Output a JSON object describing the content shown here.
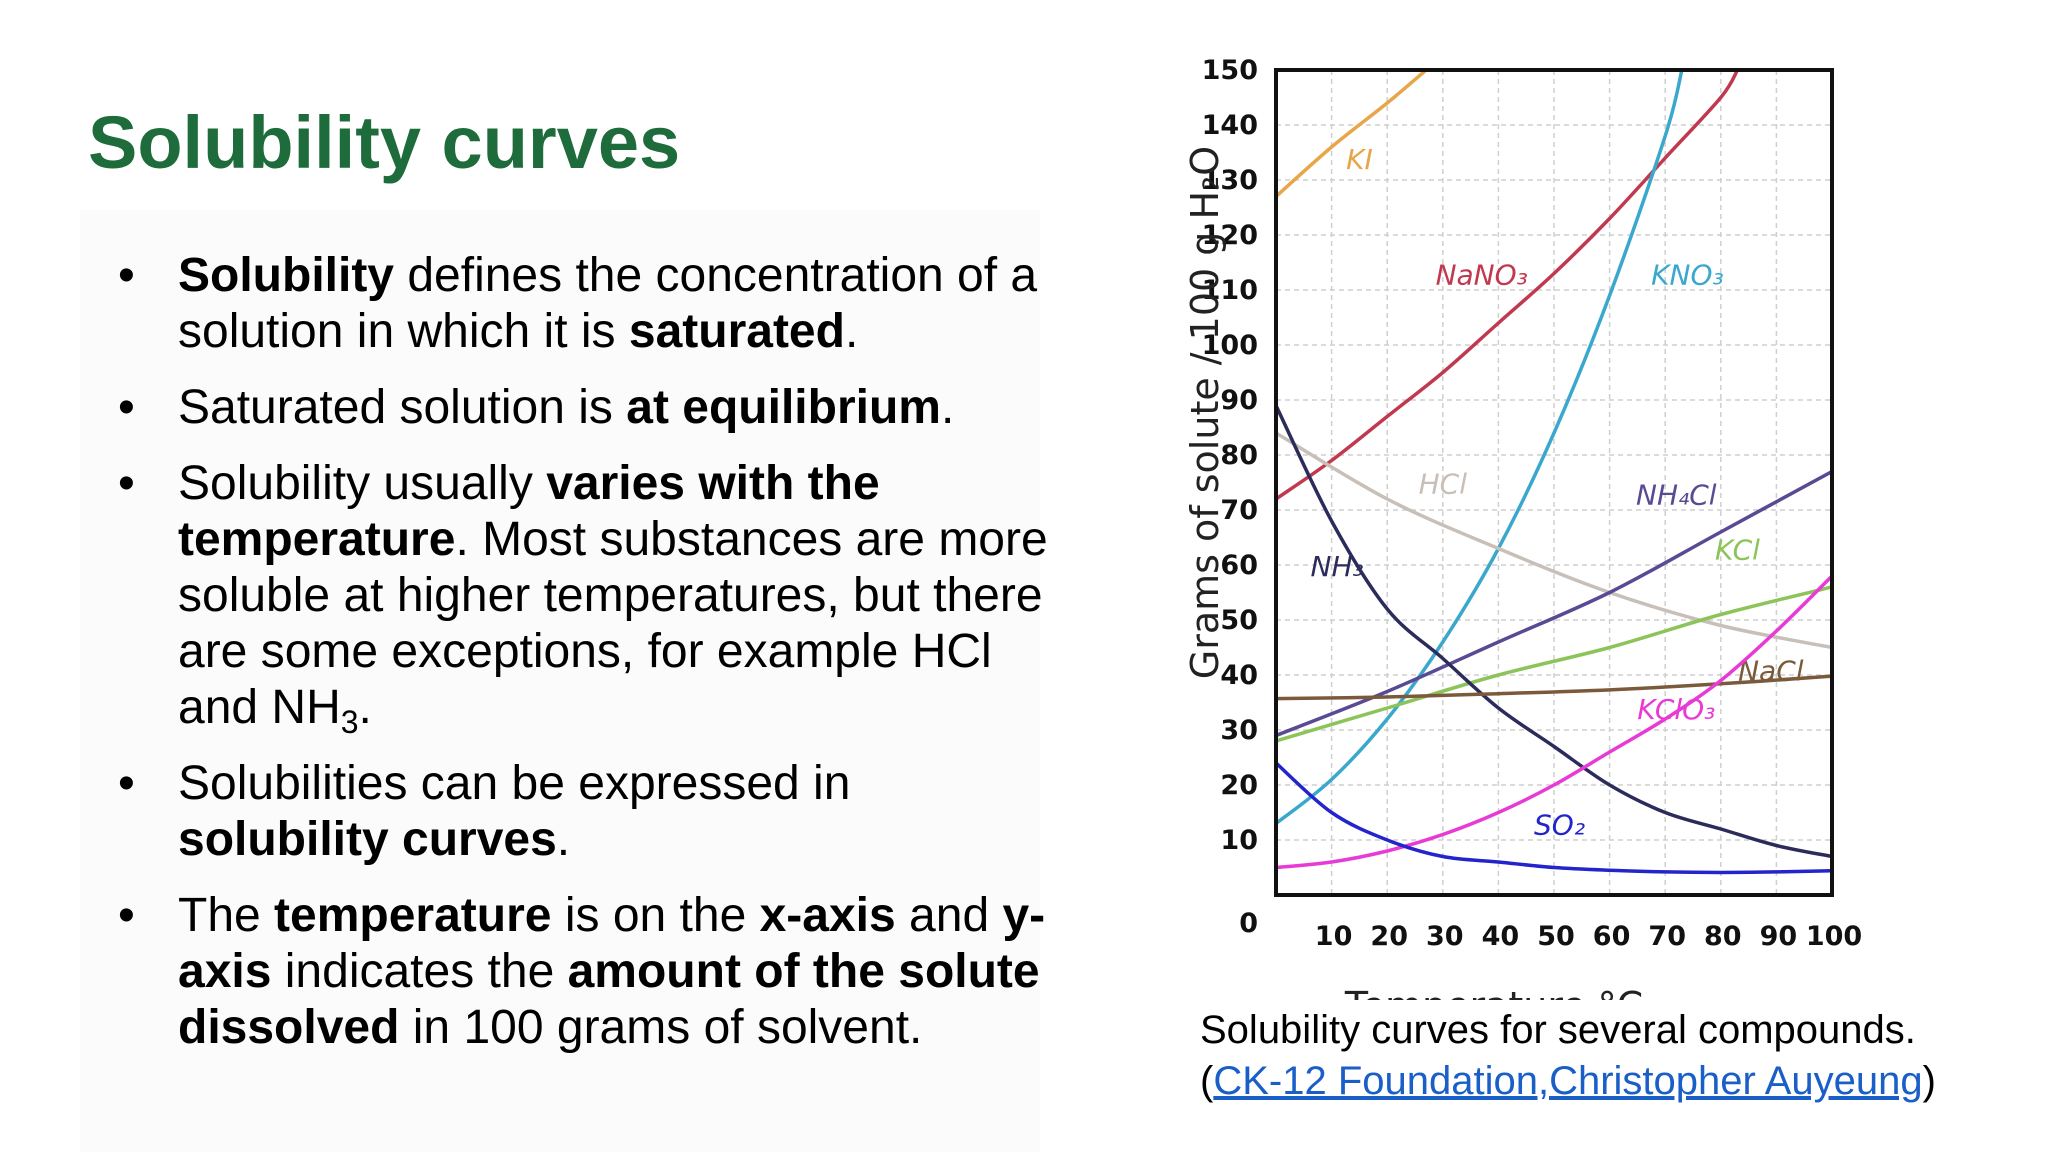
{
  "slide": {
    "title": "Solubility curves",
    "bullets": [
      [
        {
          "t": "Solubility",
          "b": true
        },
        {
          "t": " defines the concentration of a solution in which it is "
        },
        {
          "t": "saturated",
          "b": true
        },
        {
          "t": "."
        }
      ],
      [
        {
          "t": "Saturated solution is "
        },
        {
          "t": "at equilibrium",
          "b": true
        },
        {
          "t": "."
        }
      ],
      [
        {
          "t": "Solubility usually "
        },
        {
          "t": "varies with the temperature",
          "b": true
        },
        {
          "t": ". Most substances are more soluble at higher temperatures, but there are some exceptions, for example HCl and NH"
        },
        {
          "t": "3",
          "sub": true
        },
        {
          "t": "."
        }
      ],
      [
        {
          "t": "Solubilities can be expressed in "
        },
        {
          "t": "solubility curves",
          "b": true
        },
        {
          "t": "."
        }
      ],
      [
        {
          "t": "The "
        },
        {
          "t": "temperature",
          "b": true
        },
        {
          "t": " is on the "
        },
        {
          "t": "x-axis",
          "b": true
        },
        {
          "t": " and "
        },
        {
          "t": "y-axis",
          "b": true
        },
        {
          "t": " indicates the "
        },
        {
          "t": "amount of the solute dissolved",
          "b": true
        },
        {
          "t": " in 100 grams of solvent."
        }
      ]
    ],
    "caption": {
      "text": "Solubility curves for several compounds.",
      "open_paren": "(",
      "link": "CK-12 Foundation,Christopher Auyeung",
      "close_paren": ")"
    }
  },
  "chart_data": {
    "type": "line",
    "xlabel": "Temperature °C",
    "ylabel": "Grams of solute / 100 g H₂O",
    "xlim": [
      0,
      100
    ],
    "ylim": [
      0,
      150
    ],
    "xticks": [
      10,
      20,
      30,
      40,
      50,
      60,
      70,
      80,
      90,
      100
    ],
    "yticks": [
      0,
      10,
      20,
      30,
      40,
      50,
      60,
      70,
      80,
      90,
      100,
      110,
      120,
      130,
      140,
      150
    ],
    "grid": true,
    "series": [
      {
        "name": "KI",
        "color": "#e8a64a",
        "label_at": [
          15,
          132
        ],
        "x": [
          0,
          10,
          20,
          27
        ],
        "y": [
          127,
          136,
          144,
          150
        ]
      },
      {
        "name": "NaNO₃",
        "color": "#c0394f",
        "label_at": [
          37,
          111
        ],
        "x": [
          0,
          10,
          20,
          30,
          40,
          50,
          60,
          70,
          80,
          83
        ],
        "y": [
          72,
          79,
          87,
          95,
          104,
          113,
          123,
          134,
          145,
          150
        ]
      },
      {
        "name": "KNO₃",
        "color": "#3aa8cc",
        "label_at": [
          74,
          111
        ],
        "x": [
          0,
          10,
          20,
          30,
          40,
          50,
          60,
          70,
          73
        ],
        "y": [
          13,
          21,
          32,
          46,
          63,
          84,
          109,
          138,
          150
        ]
      },
      {
        "name": "HCl",
        "color": "#c8c0b8",
        "label_at": [
          30,
          73
        ],
        "x": [
          0,
          20,
          40,
          60,
          80,
          100
        ],
        "y": [
          84,
          72,
          63,
          55,
          49,
          45
        ]
      },
      {
        "name": "NH₄Cl",
        "color": "#5a4a94",
        "label_at": [
          72,
          71
        ],
        "x": [
          0,
          20,
          40,
          60,
          80,
          100
        ],
        "y": [
          29,
          37,
          46,
          55,
          66,
          77
        ]
      },
      {
        "name": "KCl",
        "color": "#8cc45a",
        "label_at": [
          83,
          61
        ],
        "x": [
          0,
          20,
          40,
          60,
          80,
          100
        ],
        "y": [
          28,
          34,
          40,
          45,
          51,
          56
        ]
      },
      {
        "name": "NH₃",
        "color": "#2c2c5c",
        "label_at": [
          11,
          58
        ],
        "x": [
          0,
          10,
          20,
          30,
          40,
          50,
          60,
          70,
          80,
          90,
          100
        ],
        "y": [
          89,
          68,
          52,
          43,
          34,
          27,
          20,
          15,
          12,
          9,
          7
        ]
      },
      {
        "name": "NaCl",
        "color": "#7a5a3a",
        "label_at": [
          89,
          39
        ],
        "x": [
          0,
          20,
          40,
          60,
          80,
          100
        ],
        "y": [
          35.7,
          36,
          36.6,
          37.3,
          38.4,
          39.8
        ]
      },
      {
        "name": "KClO₃",
        "color": "#e83ad4",
        "label_at": [
          72,
          32
        ],
        "x": [
          0,
          10,
          20,
          30,
          40,
          50,
          60,
          70,
          80,
          90,
          100
        ],
        "y": [
          5,
          6,
          8,
          11,
          15,
          20,
          26,
          32,
          39,
          48,
          58
        ]
      },
      {
        "name": "SO₂",
        "color": "#2424cc",
        "label_at": [
          51,
          11
        ],
        "x": [
          0,
          10,
          20,
          30,
          40,
          50,
          60,
          70,
          80,
          90,
          100
        ],
        "y": [
          24,
          15,
          10,
          7,
          6,
          5,
          4.5,
          4.2,
          4.1,
          4.2,
          4.4
        ]
      }
    ]
  }
}
